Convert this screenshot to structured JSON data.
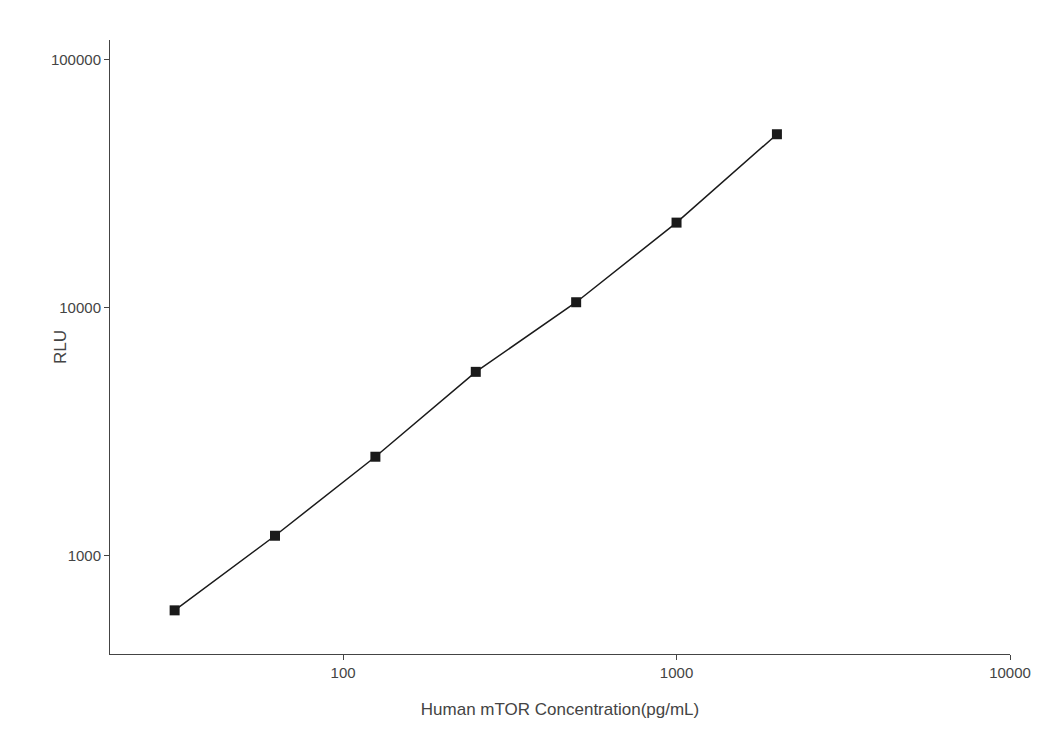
{
  "chart_data": {
    "type": "line",
    "x": [
      31.25,
      62.5,
      125,
      250,
      500,
      1000,
      2000
    ],
    "series": [
      {
        "name": "RLU",
        "color": "#1a1a1a",
        "marker": "square",
        "values": [
          600,
          1200,
          2500,
          5500,
          10500,
          22000,
          50000
        ]
      }
    ],
    "xlabel": "Human mTOR Concentration(pg/mL)",
    "ylabel": "RLU",
    "xlim": [
      20,
      10000
    ],
    "ylim": [
      400,
      120000
    ],
    "xticks": [
      100,
      1000,
      10000
    ],
    "yticks": [
      1000,
      10000,
      100000
    ],
    "log": true,
    "grid": false
  }
}
